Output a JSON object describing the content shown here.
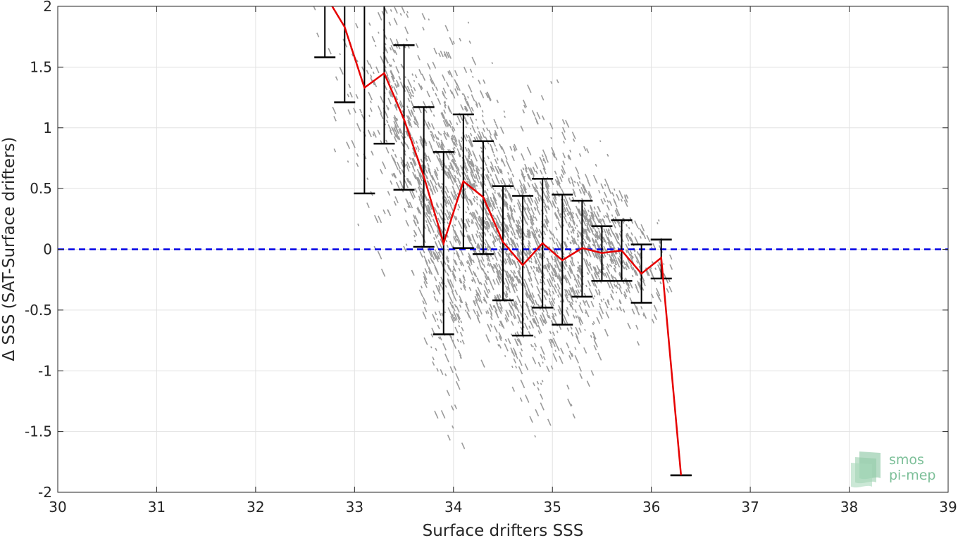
{
  "chart_data": {
    "type": "scatter",
    "title": "",
    "xlabel": "Surface drifters SSS",
    "ylabel": "Δ SSS (SAT-Surface drifters)",
    "xlim": [
      30,
      39
    ],
    "ylim": [
      -2,
      2
    ],
    "xticks": [
      30,
      31,
      32,
      33,
      34,
      35,
      36,
      37,
      38,
      39
    ],
    "yticks": [
      -2,
      -1.5,
      -1,
      -0.5,
      0,
      0.5,
      1,
      1.5,
      2
    ],
    "grid": true,
    "reference_line": {
      "y": 0,
      "color": "#0000e6",
      "style": "dashed"
    },
    "scatter_color": "#9a9a9a",
    "mean_line_color": "#e60000",
    "errorbar_color": "#000000",
    "mean_line": {
      "x": [
        32.7,
        32.9,
        33.1,
        33.3,
        33.5,
        33.7,
        33.9,
        34.1,
        34.3,
        34.5,
        34.7,
        34.9,
        35.1,
        35.3,
        35.5,
        35.7,
        35.9,
        36.1,
        36.3
      ],
      "y": [
        2.1,
        1.83,
        1.33,
        1.45,
        1.07,
        0.6,
        0.05,
        0.56,
        0.43,
        0.06,
        -0.13,
        0.05,
        -0.09,
        0.01,
        -0.03,
        -0.01,
        -0.2,
        -0.07,
        -1.86
      ]
    },
    "error_bars": [
      {
        "x": 32.9,
        "low": 1.21,
        "high": 2.0
      },
      {
        "x": 33.1,
        "low": 0.46,
        "high": 2.0
      },
      {
        "x": 33.3,
        "low": 0.87,
        "high": 2.0
      },
      {
        "x": 33.5,
        "low": 0.49,
        "high": 1.68
      },
      {
        "x": 33.7,
        "low": 0.02,
        "high": 1.17
      },
      {
        "x": 33.9,
        "low": -0.7,
        "high": 0.8
      },
      {
        "x": 34.1,
        "low": 0.01,
        "high": 1.11
      },
      {
        "x": 34.3,
        "low": -0.04,
        "high": 0.89
      },
      {
        "x": 34.5,
        "low": -0.42,
        "high": 0.52
      },
      {
        "x": 34.7,
        "low": -0.71,
        "high": 0.44
      },
      {
        "x": 34.9,
        "low": -0.48,
        "high": 0.58
      },
      {
        "x": 35.1,
        "low": -0.62,
        "high": 0.45
      },
      {
        "x": 35.3,
        "low": -0.39,
        "high": 0.4
      },
      {
        "x": 35.5,
        "low": -0.26,
        "high": 0.19
      },
      {
        "x": 35.7,
        "low": -0.26,
        "high": 0.24
      },
      {
        "x": 35.9,
        "low": -0.44,
        "high": 0.04
      },
      {
        "x": 36.1,
        "low": -0.24,
        "high": 0.08
      },
      {
        "x": 36.3,
        "low": -1.86,
        "high": -1.86
      }
    ],
    "open_error_bars": [
      {
        "x": 32.7,
        "low": 1.58,
        "high": 2.0
      }
    ],
    "scatter_clusters": [
      {
        "x": 32.7,
        "y": 1.5,
        "sy": 0.18,
        "n": 6,
        "xspread": 0.16
      },
      {
        "x": 32.9,
        "y": 1.4,
        "sy": 0.45,
        "n": 10,
        "xspread": 0.2
      },
      {
        "x": 33.1,
        "y": 0.9,
        "sy": 0.5,
        "n": 30,
        "xspread": 0.2
      },
      {
        "x": 33.3,
        "y": 1.3,
        "sy": 0.45,
        "n": 80,
        "xspread": 0.2
      },
      {
        "x": 33.5,
        "y": 1.05,
        "sy": 0.45,
        "n": 150,
        "xspread": 0.2
      },
      {
        "x": 33.7,
        "y": 0.6,
        "sy": 0.5,
        "n": 200,
        "xspread": 0.2
      },
      {
        "x": 33.9,
        "y": 0.05,
        "sy": 0.6,
        "n": 240,
        "xspread": 0.2
      },
      {
        "x": 34.1,
        "y": 0.5,
        "sy": 0.55,
        "n": 260,
        "xspread": 0.2
      },
      {
        "x": 34.3,
        "y": 0.4,
        "sy": 0.45,
        "n": 260,
        "xspread": 0.2
      },
      {
        "x": 34.5,
        "y": 0.05,
        "sy": 0.45,
        "n": 240,
        "xspread": 0.2
      },
      {
        "x": 34.7,
        "y": -0.15,
        "sy": 0.5,
        "n": 240,
        "xspread": 0.2
      },
      {
        "x": 34.9,
        "y": 0.05,
        "sy": 0.5,
        "n": 220,
        "xspread": 0.2
      },
      {
        "x": 35.1,
        "y": -0.05,
        "sy": 0.5,
        "n": 200,
        "xspread": 0.2
      },
      {
        "x": 35.3,
        "y": 0.02,
        "sy": 0.38,
        "n": 180,
        "xspread": 0.2
      },
      {
        "x": 35.5,
        "y": -0.03,
        "sy": 0.22,
        "n": 150,
        "xspread": 0.2
      },
      {
        "x": 35.7,
        "y": 0.0,
        "sy": 0.24,
        "n": 120,
        "xspread": 0.2
      },
      {
        "x": 35.9,
        "y": -0.15,
        "sy": 0.22,
        "n": 70,
        "xspread": 0.2
      },
      {
        "x": 36.1,
        "y": -0.05,
        "sy": 0.12,
        "n": 15,
        "xspread": 0.1
      }
    ]
  },
  "logo": {
    "line1": "smos",
    "line2": "pi-mep",
    "color": "#7cbf98"
  }
}
